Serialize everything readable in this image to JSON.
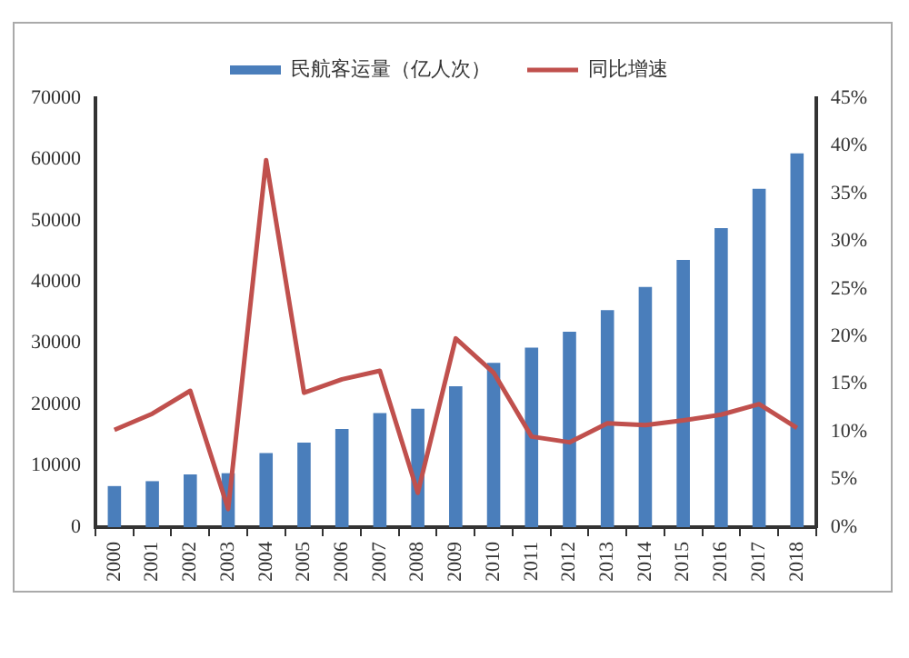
{
  "chart_data": {
    "type": "bar",
    "categories": [
      "2000",
      "2001",
      "2002",
      "2003",
      "2004",
      "2005",
      "2006",
      "2007",
      "2008",
      "2009",
      "2010",
      "2011",
      "2012",
      "2013",
      "2014",
      "2015",
      "2016",
      "2017",
      "2018"
    ],
    "series": [
      {
        "name": "民航客运量（亿人次）",
        "color": "#4a7ebb",
        "values": [
          6700,
          7500,
          8600,
          8800,
          12100,
          13800,
          16000,
          18600,
          19300,
          23000,
          26800,
          29300,
          31900,
          35400,
          39200,
          43600,
          48800,
          55200,
          61000
        ]
      },
      {
        "name": "同比增速",
        "type": "line",
        "axis": "y2",
        "color": "#c0504d",
        "values": [
          10.2,
          11.9,
          14.3,
          1.9,
          38.5,
          14.1,
          15.5,
          16.4,
          3.6,
          19.8,
          16.2,
          9.5,
          8.9,
          10.9,
          10.7,
          11.2,
          11.8,
          12.9,
          10.4
        ]
      }
    ],
    "ylim": [
      0,
      70000
    ],
    "yticks": [
      0,
      10000,
      20000,
      30000,
      40000,
      50000,
      60000,
      70000
    ],
    "y2lim": [
      0,
      45
    ],
    "y2ticks": [
      {
        "value": 0,
        "label": "0%"
      },
      {
        "value": 5,
        "label": "5%"
      },
      {
        "value": 10,
        "label": "10%"
      },
      {
        "value": 15,
        "label": "15%"
      },
      {
        "value": 20,
        "label": "20%"
      },
      {
        "value": 25,
        "label": "25%"
      },
      {
        "value": 30,
        "label": "30%"
      },
      {
        "value": 35,
        "label": "35%"
      },
      {
        "value": 40,
        "label": "40%"
      },
      {
        "value": 45,
        "label": "45%"
      }
    ],
    "grid": false,
    "legend": "top",
    "marker": "none",
    "line_style": "solid"
  }
}
